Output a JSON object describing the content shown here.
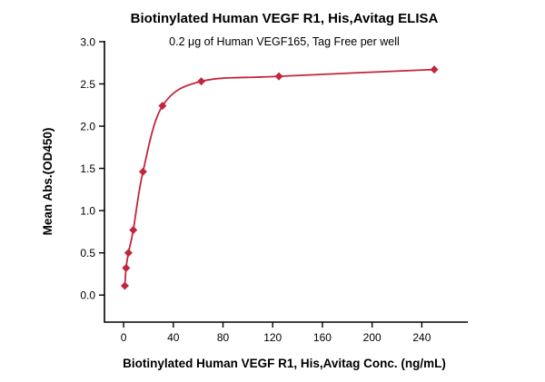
{
  "chart_data": {
    "type": "scatter",
    "title": "Biotinylated Human VEGF R1, His,Avitag ELISA",
    "subtitle": "0.2 μg of Human VEGF165, Tag Free per well",
    "xlabel": "Biotinylated Human VEGF R1, His,Avitag Conc. (ng/mL)",
    "ylabel": "Mean Abs.(OD450)",
    "x": [
      1,
      2,
      3.9,
      7.8,
      15.6,
      31.3,
      62.5,
      125,
      250
    ],
    "y": [
      0.11,
      0.32,
      0.5,
      0.77,
      1.46,
      2.24,
      2.53,
      2.59,
      2.67
    ],
    "x_ticks": [
      0,
      40,
      80,
      120,
      160,
      200,
      240
    ],
    "y_ticks": [
      0.0,
      0.5,
      1.0,
      1.5,
      2.0,
      2.5,
      3.0
    ],
    "xlim": [
      -15.4,
      277
    ],
    "ylim": [
      -0.32,
      3.01
    ],
    "line_color": "#c2263c",
    "marker": "diamond",
    "grid": false,
    "legend": null
  }
}
